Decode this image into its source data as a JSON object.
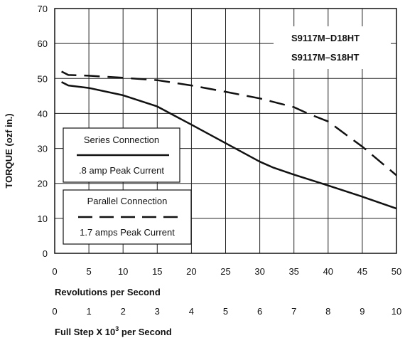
{
  "chart_data": {
    "type": "line",
    "ylabel": "TORQUE (ozf in.)",
    "xlabel": "Revolutions per Second",
    "xlabel2": {
      "prefix": "Full Step X 10",
      "superscript": "3",
      "suffix": " per Second"
    },
    "xlim": [
      0,
      50
    ],
    "ylim": [
      0,
      70
    ],
    "x_ticks": [
      0,
      5,
      10,
      15,
      20,
      25,
      30,
      35,
      40,
      45,
      50
    ],
    "x2_ticks": [
      0,
      1,
      2,
      3,
      4,
      5,
      6,
      7,
      8,
      9,
      10
    ],
    "y_ticks": [
      0,
      10,
      20,
      30,
      40,
      50,
      60,
      70
    ],
    "grid": true,
    "model_labels": [
      "S9117M–D18HT",
      "S9117M–S18HT"
    ],
    "series": [
      {
        "name": "Series Connection",
        "sublabel": ".8 amp Peak Current",
        "style": "solid",
        "x": [
          1,
          2,
          5,
          10,
          15,
          20,
          25,
          30,
          32,
          35,
          40,
          45,
          50
        ],
        "y": [
          49,
          48,
          47.3,
          45.2,
          42,
          36.8,
          31.5,
          26.2,
          24.5,
          22.5,
          19.4,
          16.2,
          12.8
        ]
      },
      {
        "name": "Parallel Connection",
        "sublabel": "1.7 amps Peak Current",
        "style": "dashed",
        "x": [
          1,
          2,
          5,
          10,
          15,
          20,
          25,
          30,
          35,
          37,
          40,
          45,
          50
        ],
        "y": [
          52,
          51,
          50.8,
          50.2,
          49.5,
          48,
          46.2,
          44.3,
          41.8,
          40,
          37.7,
          30.5,
          22.3
        ]
      }
    ]
  }
}
